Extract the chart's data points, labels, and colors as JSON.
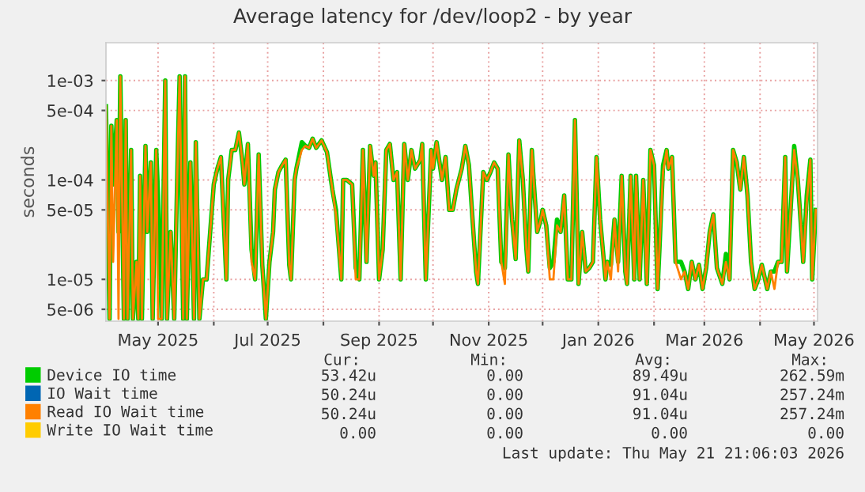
{
  "chart_data": {
    "type": "line",
    "title": "Average latency for /dev/loop2 - by year",
    "ylabel": "seconds",
    "log": "y",
    "grid": true,
    "legend": "bottom",
    "marker": "none",
    "line_style": "solid",
    "xlim": [
      "2025-04-02",
      "2026-05-03"
    ],
    "ylim": [
      3.8e-06,
      0.0024
    ],
    "xticks": [
      {
        "value": "2025-05-01",
        "label": "May 2025"
      },
      {
        "value": "2025-06-01",
        "label": null
      },
      {
        "value": "2025-07-01",
        "label": "Jul 2025"
      },
      {
        "value": "2025-08-01",
        "label": null
      },
      {
        "value": "2025-09-01",
        "label": "Sep 2025"
      },
      {
        "value": "2025-10-01",
        "label": null
      },
      {
        "value": "2025-11-01",
        "label": "Nov 2025"
      },
      {
        "value": "2025-12-01",
        "label": null
      },
      {
        "value": "2026-01-01",
        "label": "Jan 2026"
      },
      {
        "value": "2026-02-01",
        "label": null
      },
      {
        "value": "2026-03-01",
        "label": "Mar 2026"
      },
      {
        "value": "2026-04-01",
        "label": null
      },
      {
        "value": "2026-05-01",
        "label": "May 2026"
      }
    ],
    "yticks": [
      {
        "value": 5e-06,
        "label": "5e-06"
      },
      {
        "value": 1e-05,
        "label": "1e-05"
      },
      {
        "value": 5e-05,
        "label": "5e-05"
      },
      {
        "value": 0.0001,
        "label": "1e-04"
      },
      {
        "value": 0.0005,
        "label": "5e-04"
      },
      {
        "value": 0.001,
        "label": "1e-03"
      }
    ],
    "x": [
      "2025-04-02",
      "2025-04-04",
      "2025-04-05",
      "2025-04-06",
      "2025-04-08",
      "2025-04-09",
      "2025-04-10",
      "2025-04-12",
      "2025-04-13",
      "2025-04-14",
      "2025-04-16",
      "2025-04-17",
      "2025-04-19",
      "2025-04-20",
      "2025-04-21",
      "2025-04-22",
      "2025-04-24",
      "2025-04-25",
      "2025-04-27",
      "2025-04-28",
      "2025-04-30",
      "2025-05-01",
      "2025-05-03",
      "2025-05-05",
      "2025-05-06",
      "2025-05-08",
      "2025-05-10",
      "2025-05-12",
      "2025-05-13",
      "2025-05-15",
      "2025-05-16",
      "2025-05-17",
      "2025-05-19",
      "2025-05-21",
      "2025-05-22",
      "2025-05-24",
      "2025-05-26",
      "2025-05-28",
      "2025-05-30",
      "2025-06-01",
      "2025-06-03",
      "2025-06-05",
      "2025-06-08",
      "2025-06-09",
      "2025-06-11",
      "2025-06-13",
      "2025-06-15",
      "2025-06-17",
      "2025-06-18",
      "2025-06-20",
      "2025-06-22",
      "2025-06-24",
      "2025-06-26",
      "2025-06-28",
      "2025-06-30",
      "2025-07-02",
      "2025-07-04",
      "2025-07-05",
      "2025-07-07",
      "2025-07-09",
      "2025-07-11",
      "2025-07-13",
      "2025-07-14",
      "2025-07-16",
      "2025-07-17",
      "2025-07-20",
      "2025-07-22",
      "2025-07-24",
      "2025-07-26",
      "2025-07-28",
      "2025-07-31",
      "2025-08-03",
      "2025-08-06",
      "2025-08-08",
      "2025-08-11",
      "2025-08-12",
      "2025-08-14",
      "2025-08-17",
      "2025-08-19",
      "2025-08-21",
      "2025-08-23",
      "2025-08-25",
      "2025-08-27",
      "2025-08-29",
      "2025-08-30",
      "2025-09-01",
      "2025-09-03",
      "2025-09-05",
      "2025-09-07",
      "2025-09-09",
      "2025-09-11",
      "2025-09-13",
      "2025-09-15",
      "2025-09-17",
      "2025-09-19",
      "2025-09-21",
      "2025-09-24",
      "2025-09-25",
      "2025-09-27",
      "2025-09-30",
      "2025-10-01",
      "2025-10-03",
      "2025-10-06",
      "2025-10-08",
      "2025-10-10",
      "2025-10-12",
      "2025-10-14",
      "2025-10-17",
      "2025-10-19",
      "2025-10-21",
      "2025-10-23",
      "2025-10-25",
      "2025-10-26",
      "2025-10-29",
      "2025-10-31",
      "2025-11-02",
      "2025-11-04",
      "2025-11-06",
      "2025-11-08",
      "2025-11-10",
      "2025-11-12",
      "2025-11-14",
      "2025-11-16",
      "2025-11-18",
      "2025-11-20",
      "2025-11-22",
      "2025-11-23",
      "2025-11-25",
      "2025-11-26",
      "2025-11-28",
      "2025-11-30",
      "2025-12-01",
      "2025-12-03",
      "2025-12-05",
      "2025-12-07",
      "2025-12-09",
      "2025-12-11",
      "2025-12-13",
      "2025-12-15",
      "2025-12-17",
      "2025-12-19",
      "2025-12-21",
      "2025-12-23",
      "2025-12-25",
      "2025-12-27",
      "2025-12-29",
      "2025-12-31",
      "2026-01-02",
      "2026-01-05",
      "2026-01-06",
      "2026-01-08",
      "2026-01-10",
      "2026-01-12",
      "2026-01-14",
      "2026-01-16",
      "2026-01-17",
      "2026-01-19",
      "2026-01-21",
      "2026-01-22",
      "2026-01-24",
      "2026-01-26",
      "2026-01-28",
      "2026-01-30",
      "2026-02-01",
      "2026-02-03",
      "2026-02-04",
      "2026-02-06",
      "2026-02-08",
      "2026-02-09",
      "2026-02-11",
      "2026-02-13",
      "2026-02-16",
      "2026-02-18",
      "2026-02-20",
      "2026-02-22",
      "2026-02-24",
      "2026-02-26",
      "2026-02-28",
      "2026-03-02",
      "2026-03-04",
      "2026-03-06",
      "2026-03-08",
      "2026-03-11",
      "2026-03-13",
      "2026-03-15",
      "2026-03-17",
      "2026-03-19",
      "2026-03-21",
      "2026-03-23",
      "2026-03-25",
      "2026-03-27",
      "2026-03-29",
      "2026-03-31",
      "2026-04-02",
      "2026-04-05",
      "2026-04-07",
      "2026-04-09",
      "2026-04-11",
      "2026-04-13",
      "2026-04-15",
      "2026-04-16",
      "2026-04-18",
      "2026-04-20",
      "2026-04-22",
      "2026-04-24",
      "2026-04-25",
      "2026-04-27",
      "2026-04-29",
      "2026-04-30",
      "2026-05-02"
    ],
    "series": [
      {
        "name": "Device IO time",
        "color": "#00cc00",
        "values": [
          0.00055,
          4e-06,
          0.00035,
          9e-05,
          0.0004,
          3e-05,
          0.0011,
          4e-06,
          0.0004,
          4e-06,
          0.0002,
          4e-06,
          1.5e-05,
          4e-06,
          0.00011,
          4e-06,
          0.00022,
          3e-05,
          0.00015,
          4e-06,
          0.0002,
          7e-05,
          4e-06,
          0.001,
          4e-06,
          3e-05,
          4e-06,
          0.0002,
          0.0011,
          4e-06,
          0.0011,
          4e-06,
          0.00015,
          4e-06,
          0.00024,
          4e-06,
          1e-05,
          1e-05,
          3e-05,
          9e-05,
          0.00013,
          0.00017,
          1e-05,
          0.0001,
          0.0002,
          0.0002,
          0.0003,
          0.00015,
          9e-05,
          0.00023,
          2e-05,
          1e-05,
          0.00018,
          1.4e-05,
          4e-06,
          1.5e-05,
          3e-05,
          8e-05,
          0.00012,
          0.00014,
          0.00016,
          1.4e-05,
          1e-05,
          0.0001,
          0.00013,
          0.00024,
          0.00022,
          0.00021,
          0.00026,
          0.00021,
          0.00025,
          0.00019,
          8e-05,
          5e-05,
          1e-05,
          0.0001,
          0.0001,
          9e-05,
          1.3e-05,
          1e-05,
          0.0002,
          1.5e-05,
          0.00022,
          0.00011,
          0.00015,
          1e-05,
          2e-05,
          0.0002,
          0.00023,
          0.0001,
          0.00012,
          1e-05,
          0.00023,
          0.0001,
          0.0002,
          0.00013,
          0.00016,
          0.00023,
          1e-05,
          0.0002,
          0.00013,
          0.00024,
          0.0001,
          0.00017,
          5e-05,
          5e-05,
          8e-05,
          0.00013,
          0.00022,
          0.00014,
          4e-05,
          1.2e-05,
          9e-06,
          0.00012,
          0.0001,
          0.00012,
          0.00015,
          0.00013,
          1.5e-05,
          1.3e-05,
          0.00018,
          4e-05,
          1.6e-05,
          0.00025,
          0.0001,
          2e-05,
          1.2e-05,
          0.0002,
          0.0001,
          3e-05,
          4e-05,
          5e-05,
          3.5e-05,
          1.3e-05,
          1.5e-05,
          4e-05,
          3e-05,
          7e-05,
          1e-05,
          1e-05,
          0.0004,
          9e-06,
          3e-05,
          1.2e-05,
          1.3e-05,
          1.5e-05,
          0.00017,
          4e-05,
          1e-05,
          1.5e-05,
          1.4e-05,
          4e-05,
          1.5e-05,
          0.00011,
          1.2e-05,
          9e-06,
          0.00011,
          1e-05,
          0.00011,
          1e-05,
          0.0001,
          9e-06,
          0.0002,
          0.00014,
          8e-06,
          2e-05,
          0.00014,
          0.0002,
          0.00013,
          0.00017,
          1.5e-05,
          1.5e-05,
          1.2e-05,
          8e-06,
          1.5e-05,
          1e-05,
          1.4e-05,
          8e-06,
          1.3e-05,
          3e-05,
          4.5e-05,
          1.3e-05,
          9e-06,
          1.8e-05,
          1e-05,
          0.0002,
          0.00015,
          8e-05,
          0.00017,
          7e-05,
          1.5e-05,
          8e-06,
          1e-05,
          1.4e-05,
          8e-06,
          1.2e-05,
          1.2e-05,
          1.5e-05,
          1.5e-05,
          0.00017,
          1.2e-05,
          5e-05,
          0.00022,
          0.0001,
          3e-05,
          1.5e-05,
          7e-05,
          0.00016,
          1e-05,
          5e-05
        ]
      },
      {
        "name": "IO Wait time",
        "color": "#0066b3",
        "values": [
          null,
          null,
          null,
          null,
          null,
          null,
          null,
          null,
          null,
          null,
          null,
          null,
          null,
          null,
          null,
          null,
          null,
          null,
          null,
          null,
          null,
          null,
          null,
          null,
          null,
          null,
          null,
          null,
          null,
          null,
          null,
          null,
          null,
          null,
          null,
          null,
          null,
          null,
          null,
          null,
          null,
          null,
          null,
          null,
          null,
          null,
          null,
          null,
          null,
          null,
          null,
          null,
          null,
          null,
          null,
          null,
          null,
          null,
          null,
          null,
          null,
          null,
          null,
          null,
          null,
          null,
          null,
          null,
          null,
          null,
          null,
          null,
          null,
          null,
          null,
          null,
          null,
          null,
          null,
          null,
          null,
          null,
          null,
          null,
          null,
          null,
          null,
          null,
          null,
          null,
          null,
          null,
          null,
          null,
          null,
          null,
          null,
          null,
          null,
          null,
          null,
          null,
          null,
          null,
          null,
          null,
          null,
          null,
          null,
          null,
          null,
          null,
          null,
          null,
          null,
          null,
          null,
          null,
          null,
          null,
          null,
          null,
          null,
          null,
          null,
          null,
          null,
          null,
          null,
          null,
          null,
          null,
          null,
          null,
          null,
          null,
          null,
          null,
          null,
          null,
          null,
          null,
          null,
          null,
          null,
          null,
          null,
          null,
          null,
          null,
          null,
          null,
          null,
          null,
          null,
          null,
          null,
          null,
          null,
          null,
          null,
          null,
          null,
          null,
          null,
          null,
          null,
          null,
          null,
          null,
          null,
          null,
          null,
          null,
          null,
          null,
          null,
          null,
          null,
          null,
          null,
          null,
          null,
          null,
          null,
          null,
          null,
          null,
          null,
          null,
          null,
          null,
          null,
          null,
          null,
          null,
          null,
          null,
          null,
          null,
          null,
          null,
          null,
          null,
          null,
          null,
          null,
          null,
          null,
          null
        ]
      },
      {
        "name": "Read IO Wait time",
        "color": "#ff8000",
        "values": [
          0.00055,
          4e-06,
          0.00035,
          1.5e-05,
          0.0004,
          4e-06,
          0.0011,
          4e-06,
          0.0004,
          4e-06,
          0.0002,
          4e-06,
          1.5e-05,
          4e-06,
          0.00011,
          4e-06,
          0.00022,
          3e-05,
          0.00015,
          4e-06,
          0.0002,
          4e-06,
          4e-06,
          0.001,
          4e-06,
          3e-05,
          4e-06,
          0.0002,
          0.0011,
          4e-06,
          0.0011,
          4e-06,
          0.00015,
          4e-06,
          0.00024,
          4e-06,
          1e-05,
          1e-05,
          3e-05,
          9e-05,
          0.00013,
          0.00017,
          1e-05,
          0.0001,
          0.0002,
          0.0002,
          0.0003,
          0.00015,
          9e-05,
          0.00023,
          1.5e-05,
          1e-05,
          0.00018,
          1.4e-05,
          4e-06,
          1.5e-05,
          3e-05,
          8e-05,
          0.00012,
          0.00014,
          0.00016,
          1.4e-05,
          1e-05,
          0.0001,
          0.00013,
          0.0002,
          0.00022,
          0.00021,
          0.00026,
          0.00021,
          0.00025,
          0.00019,
          8e-05,
          4.5e-05,
          1e-05,
          0.0001,
          0.0001,
          9e-05,
          1e-05,
          1e-05,
          0.0002,
          1.5e-05,
          0.00022,
          0.00011,
          0.00015,
          1e-05,
          2e-05,
          0.0002,
          0.00023,
          0.0001,
          0.00012,
          1e-05,
          0.00023,
          0.0001,
          0.0002,
          0.00013,
          0.00016,
          0.00023,
          1e-05,
          0.0002,
          0.00013,
          0.00024,
          0.0001,
          0.00017,
          5e-05,
          5e-05,
          8e-05,
          0.00013,
          0.00022,
          0.00014,
          4e-05,
          1.2e-05,
          9e-06,
          0.00012,
          0.0001,
          0.00012,
          0.00015,
          0.00013,
          1.5e-05,
          9e-06,
          0.00018,
          4e-05,
          1.6e-05,
          0.00025,
          0.0001,
          2e-05,
          1.2e-05,
          0.0002,
          0.0001,
          3e-05,
          4e-05,
          5e-05,
          3.5e-05,
          1e-05,
          1e-05,
          3.5e-05,
          3e-05,
          7e-05,
          1e-05,
          1e-05,
          0.0004,
          9e-06,
          3e-05,
          1.2e-05,
          1.3e-05,
          1.5e-05,
          0.00017,
          4e-05,
          1e-05,
          1.5e-05,
          1e-05,
          4e-05,
          1.2e-05,
          0.00011,
          1.2e-05,
          9e-06,
          0.00011,
          1e-05,
          0.00011,
          1e-05,
          0.0001,
          9e-06,
          0.0002,
          0.00014,
          8e-06,
          2e-05,
          0.00012,
          0.0002,
          0.00013,
          0.00017,
          1.5e-05,
          1e-05,
          1.2e-05,
          8e-06,
          1.5e-05,
          1e-05,
          1.4e-05,
          8e-06,
          1.3e-05,
          3e-05,
          4.5e-05,
          1.3e-05,
          9e-06,
          1.5e-05,
          1e-05,
          0.0002,
          0.00015,
          8e-05,
          0.00017,
          7e-05,
          1.5e-05,
          8e-06,
          1e-05,
          1.4e-05,
          8e-06,
          1.2e-05,
          8e-06,
          1.5e-05,
          1.5e-05,
          0.00017,
          1.2e-05,
          5e-05,
          0.0002,
          0.0001,
          3e-05,
          1.5e-05,
          6e-05,
          0.00016,
          1e-05,
          5e-05
        ]
      },
      {
        "name": "Write IO Wait time",
        "color": "#ffcc00",
        "values": [
          null,
          null,
          null,
          null,
          null,
          null,
          null,
          null,
          null,
          null,
          null,
          null,
          null,
          null,
          null,
          null,
          null,
          null,
          null,
          null,
          null,
          null,
          null,
          null,
          null,
          null,
          null,
          null,
          null,
          null,
          null,
          null,
          null,
          null,
          null,
          null,
          null,
          null,
          null,
          null,
          null,
          null,
          null,
          null,
          null,
          null,
          null,
          null,
          null,
          null,
          null,
          null,
          null,
          null,
          null,
          null,
          null,
          null,
          null,
          null,
          null,
          null,
          null,
          null,
          null,
          null,
          null,
          null,
          null,
          null,
          null,
          null,
          null,
          null,
          null,
          null,
          null,
          null,
          null,
          null,
          null,
          null,
          null,
          null,
          null,
          null,
          null,
          null,
          null,
          null,
          null,
          null,
          null,
          null,
          null,
          null,
          null,
          null,
          null,
          null,
          null,
          null,
          null,
          null,
          null,
          null,
          null,
          null,
          null,
          null,
          null,
          null,
          null,
          null,
          null,
          null,
          null,
          null,
          null,
          null,
          null,
          null,
          null,
          null,
          null,
          null,
          null,
          null,
          null,
          null,
          null,
          null,
          null,
          null,
          null,
          null,
          null,
          null,
          null,
          null,
          null,
          null,
          null,
          null,
          null,
          null,
          null,
          null,
          null,
          null,
          null,
          null,
          null,
          null,
          null,
          null,
          null,
          null,
          null,
          null,
          null,
          null,
          null,
          null,
          null,
          null,
          null,
          null,
          null,
          null,
          null,
          null,
          null,
          null,
          null,
          null,
          null,
          null,
          null,
          null,
          null,
          null,
          null,
          null,
          null,
          null,
          null,
          null,
          null,
          null,
          null,
          null,
          null,
          null,
          null,
          null,
          null,
          null,
          null,
          null,
          null,
          null,
          null,
          null,
          null,
          null,
          null,
          null,
          null,
          null
        ]
      }
    ],
    "annotations": [
      "Cur:",
      "Min:",
      "Avg:",
      "Max:",
      "53.42u",
      "0.00",
      "89.49u",
      "262.59m",
      "50.24u",
      "0.00",
      "91.04u",
      "257.24m",
      "50.24u",
      "0.00",
      "91.04u",
      "257.24m",
      "0.00",
      "0.00",
      "0.00",
      "0.00",
      "Last update: Thu May 21 21:06:03 2026"
    ]
  }
}
